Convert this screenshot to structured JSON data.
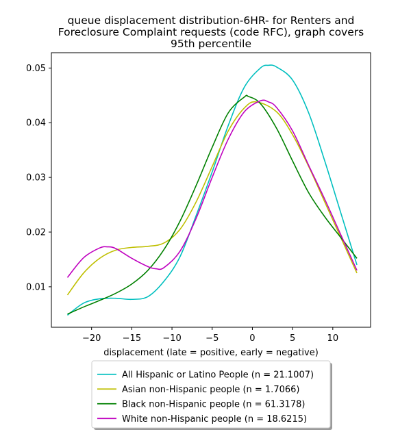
{
  "chart_data": {
    "type": "line",
    "title": "queue displacement distribution-6HR-  for Renters and\nForeclosure Complaint  requests (code RFC), graph covers\n95th percentile",
    "xlabel": "displacement (late = positive, early = negative)",
    "ylabel": "",
    "xlim": [
      -25,
      14.7
    ],
    "ylim": [
      0.0026,
      0.0528
    ],
    "x_ticks": [
      -20,
      -15,
      -10,
      -5,
      0,
      5,
      10
    ],
    "x_tick_labels": [
      "−20",
      "−15",
      "−10",
      "−5",
      "0",
      "5",
      "10"
    ],
    "y_ticks": [
      0.01,
      0.02,
      0.03,
      0.04,
      0.05
    ],
    "y_tick_labels": [
      "0.01",
      "0.02",
      "0.03",
      "0.04",
      "0.05"
    ],
    "grid": false,
    "legend_placement": "bottom-center, below axis",
    "series": [
      {
        "name": "All Hispanic or Latino People (n = 21.1007)",
        "color": "#00bfbf",
        "x": [
          -23,
          -21,
          -19,
          -17,
          -15,
          -13,
          -11,
          -9,
          -7,
          -5,
          -3,
          -1,
          1,
          2,
          3,
          5,
          7,
          9,
          11,
          13
        ],
        "y": [
          0.0048,
          0.007,
          0.0078,
          0.0079,
          0.0077,
          0.0082,
          0.011,
          0.0155,
          0.023,
          0.031,
          0.0395,
          0.0465,
          0.05,
          0.0505,
          0.0502,
          0.0478,
          0.0418,
          0.033,
          0.0235,
          0.014
        ]
      },
      {
        "name": "Asian non-Hispanic people (n = 1.7066)",
        "color": "#bfbf00",
        "x": [
          -23,
          -21,
          -19,
          -17,
          -15,
          -13,
          -11,
          -9,
          -7,
          -5,
          -3,
          -1,
          0.5,
          3,
          5,
          7,
          9,
          11,
          13
        ],
        "y": [
          0.0085,
          0.0125,
          0.0152,
          0.0167,
          0.0172,
          0.0174,
          0.018,
          0.0205,
          0.0255,
          0.032,
          0.0385,
          0.0427,
          0.0438,
          0.042,
          0.0378,
          0.032,
          0.0255,
          0.019,
          0.0125
        ]
      },
      {
        "name": "Black non-Hispanic people (n = 61.3178)",
        "color": "#008000",
        "x": [
          -23,
          -21,
          -19,
          -17,
          -15,
          -13,
          -11,
          -9,
          -7,
          -5,
          -3,
          -1,
          -0.5,
          1,
          3,
          5,
          7,
          9,
          11,
          13
        ],
        "y": [
          0.005,
          0.0063,
          0.0075,
          0.0088,
          0.0105,
          0.013,
          0.0168,
          0.022,
          0.0285,
          0.0355,
          0.0418,
          0.0447,
          0.0448,
          0.0435,
          0.039,
          0.033,
          0.0272,
          0.0228,
          0.019,
          0.0152
        ]
      },
      {
        "name": "White non-Hispanic people (n = 18.6215)",
        "color": "#bf00bf",
        "x": [
          -23,
          -21,
          -19,
          -18,
          -17,
          -15,
          -13,
          -12,
          -11,
          -9,
          -7,
          -5,
          -3,
          -1,
          1,
          2,
          3,
          5,
          7,
          9,
          11,
          13
        ],
        "y": [
          0.0117,
          0.0153,
          0.0171,
          0.0173,
          0.017,
          0.0152,
          0.0137,
          0.0133,
          0.0135,
          0.0165,
          0.0225,
          0.03,
          0.037,
          0.042,
          0.044,
          0.0438,
          0.0428,
          0.0385,
          0.0322,
          0.026,
          0.0195,
          0.013
        ]
      }
    ]
  }
}
